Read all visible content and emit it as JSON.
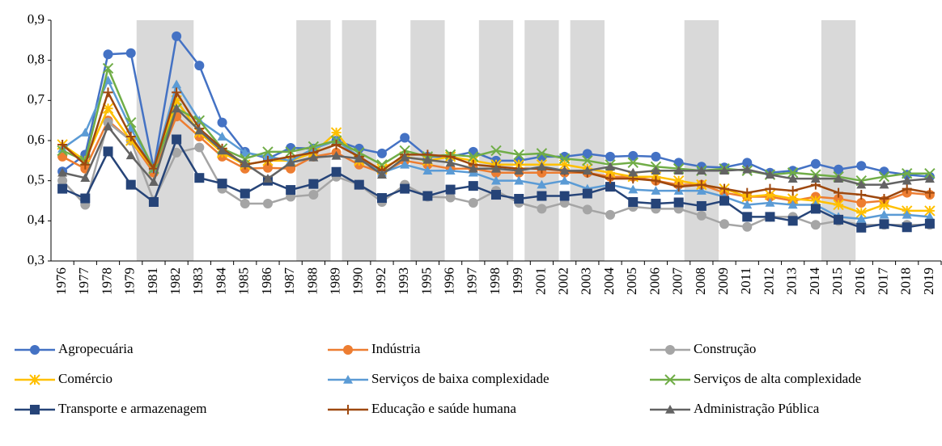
{
  "chart_data": {
    "type": "line",
    "categories": [
      "1976",
      "1977",
      "1978",
      "1979",
      "1981",
      "1982",
      "1983",
      "1984",
      "1985",
      "1986",
      "1987",
      "1988",
      "1989",
      "1990",
      "1992",
      "1993",
      "1995",
      "1996",
      "1997",
      "1998",
      "1999",
      "2001",
      "2002",
      "2003",
      "2004",
      "2005",
      "2006",
      "2007",
      "2008",
      "2009",
      "2011",
      "2012",
      "2013",
      "2014",
      "2015",
      "2016",
      "2017",
      "2018",
      "2019"
    ],
    "shaded_categories": [
      "1981",
      "1982",
      "1988",
      "1990",
      "1995",
      "1998",
      "2001",
      "2003",
      "2008",
      "2015"
    ],
    "ylim": [
      0.3,
      0.9
    ],
    "yticks": [
      {
        "value": 0.3,
        "label": "0,3"
      },
      {
        "value": 0.4,
        "label": "0,4"
      },
      {
        "value": 0.5,
        "label": "0,5"
      },
      {
        "value": 0.6,
        "label": "0,6"
      },
      {
        "value": 0.7,
        "label": "0,7"
      },
      {
        "value": 0.8,
        "label": "0,8"
      },
      {
        "value": 0.9,
        "label": "0,9"
      }
    ],
    "series": [
      {
        "name": "Agropecuária",
        "color": "#4472c4",
        "marker": "circle",
        "values": [
          0.523,
          0.565,
          0.815,
          0.818,
          0.53,
          0.86,
          0.787,
          0.645,
          0.572,
          0.555,
          0.582,
          0.58,
          0.6,
          0.58,
          0.568,
          0.607,
          0.56,
          0.56,
          0.572,
          0.55,
          0.55,
          0.56,
          0.56,
          0.567,
          0.56,
          0.562,
          0.56,
          0.545,
          0.535,
          0.533,
          0.545,
          0.52,
          0.525,
          0.542,
          0.528,
          0.537,
          0.523,
          0.515,
          0.51
        ]
      },
      {
        "name": "Indústria",
        "color": "#ed7d31",
        "marker": "circle",
        "values": [
          0.56,
          0.53,
          0.65,
          0.6,
          0.52,
          0.66,
          0.61,
          0.56,
          0.53,
          0.532,
          0.53,
          0.56,
          0.57,
          0.54,
          0.52,
          0.55,
          0.54,
          0.53,
          0.53,
          0.52,
          0.52,
          0.52,
          0.52,
          0.52,
          0.51,
          0.51,
          0.5,
          0.49,
          0.49,
          0.47,
          0.46,
          0.46,
          0.45,
          0.46,
          0.455,
          0.445,
          0.45,
          0.47,
          0.465
        ]
      },
      {
        "name": "Construção",
        "color": "#a5a5a5",
        "marker": "circle",
        "values": [
          0.5,
          0.44,
          0.645,
          0.6,
          0.45,
          0.57,
          0.583,
          0.48,
          0.443,
          0.443,
          0.46,
          0.465,
          0.51,
          0.49,
          0.447,
          0.49,
          0.46,
          0.458,
          0.445,
          0.475,
          0.445,
          0.43,
          0.445,
          0.428,
          0.415,
          0.435,
          0.43,
          0.43,
          0.413,
          0.392,
          0.385,
          0.41,
          0.41,
          0.39,
          0.4,
          0.39,
          0.39,
          0.39,
          0.39
        ]
      },
      {
        "name": "Comércio",
        "color": "#ffc000",
        "marker": "star",
        "values": [
          0.59,
          0.55,
          0.68,
          0.6,
          0.53,
          0.7,
          0.62,
          0.57,
          0.54,
          0.55,
          0.55,
          0.57,
          0.62,
          0.55,
          0.53,
          0.56,
          0.55,
          0.56,
          0.55,
          0.54,
          0.54,
          0.54,
          0.54,
          0.53,
          0.52,
          0.51,
          0.51,
          0.5,
          0.49,
          0.48,
          0.46,
          0.465,
          0.455,
          0.45,
          0.44,
          0.42,
          0.44,
          0.425,
          0.425
        ]
      },
      {
        "name": "Serviços de baixa complexidade",
        "color": "#5b9bd5",
        "marker": "triangle",
        "values": [
          0.58,
          0.62,
          0.75,
          0.63,
          0.53,
          0.74,
          0.65,
          0.61,
          0.57,
          0.56,
          0.55,
          0.58,
          0.6,
          0.56,
          0.52,
          0.54,
          0.525,
          0.525,
          0.52,
          0.5,
          0.5,
          0.49,
          0.5,
          0.48,
          0.49,
          0.478,
          0.475,
          0.475,
          0.475,
          0.46,
          0.44,
          0.445,
          0.44,
          0.44,
          0.41,
          0.405,
          0.415,
          0.415,
          0.41
        ]
      },
      {
        "name": "Serviços de alta complexidade",
        "color": "#70ad47",
        "marker": "x",
        "values": [
          0.575,
          0.55,
          0.78,
          0.645,
          0.53,
          0.68,
          0.65,
          0.58,
          0.555,
          0.572,
          0.572,
          0.585,
          0.6,
          0.57,
          0.54,
          0.575,
          0.56,
          0.565,
          0.56,
          0.575,
          0.565,
          0.568,
          0.555,
          0.55,
          0.54,
          0.545,
          0.535,
          0.53,
          0.525,
          0.53,
          0.525,
          0.515,
          0.52,
          0.515,
          0.51,
          0.5,
          0.51,
          0.518,
          0.518
        ]
      },
      {
        "name": "Transporte e armazenagem",
        "color": "#264478",
        "marker": "square",
        "values": [
          0.48,
          0.456,
          0.573,
          0.49,
          0.447,
          0.603,
          0.507,
          0.493,
          0.468,
          0.5,
          0.477,
          0.492,
          0.522,
          0.49,
          0.457,
          0.48,
          0.462,
          0.478,
          0.487,
          0.465,
          0.455,
          0.462,
          0.462,
          0.468,
          0.485,
          0.447,
          0.443,
          0.446,
          0.437,
          0.45,
          0.41,
          0.41,
          0.4,
          0.43,
          0.403,
          0.383,
          0.392,
          0.384,
          0.393
        ]
      },
      {
        "name": "Educação e saúde humana",
        "color": "#9e480e",
        "marker": "plus",
        "values": [
          0.59,
          0.54,
          0.72,
          0.61,
          0.53,
          0.72,
          0.63,
          0.58,
          0.54,
          0.55,
          0.56,
          0.57,
          0.59,
          0.56,
          0.525,
          0.565,
          0.565,
          0.56,
          0.54,
          0.535,
          0.53,
          0.53,
          0.525,
          0.52,
          0.505,
          0.505,
          0.5,
          0.485,
          0.49,
          0.48,
          0.47,
          0.48,
          0.475,
          0.49,
          0.47,
          0.465,
          0.455,
          0.48,
          0.47
        ]
      },
      {
        "name": "Administração Pública",
        "color": "#636363",
        "marker": "triangle",
        "values": [
          0.52,
          0.507,
          0.635,
          0.563,
          0.497,
          0.68,
          0.625,
          0.575,
          0.543,
          0.505,
          0.545,
          0.558,
          0.562,
          0.555,
          0.515,
          0.558,
          0.552,
          0.545,
          0.53,
          0.53,
          0.525,
          0.535,
          0.525,
          0.525,
          0.535,
          0.52,
          0.525,
          0.525,
          0.525,
          0.525,
          0.528,
          0.515,
          0.505,
          0.505,
          0.505,
          0.49,
          0.49,
          0.5,
          0.505
        ]
      }
    ]
  }
}
